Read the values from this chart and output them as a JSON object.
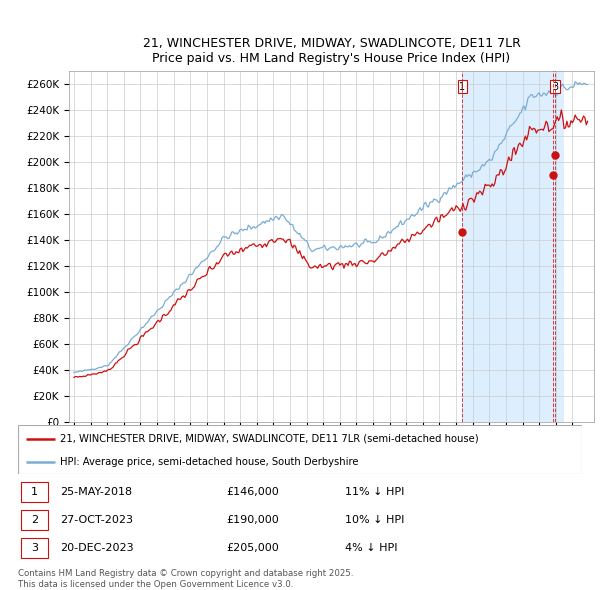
{
  "title_line1": "21, WINCHESTER DRIVE, MIDWAY, SWADLINCOTE, DE11 7LR",
  "title_line2": "Price paid vs. HM Land Registry's House Price Index (HPI)",
  "ylim": [
    0,
    270000
  ],
  "yticks": [
    0,
    20000,
    40000,
    60000,
    80000,
    100000,
    120000,
    140000,
    160000,
    180000,
    200000,
    220000,
    240000,
    260000
  ],
  "ytick_labels": [
    "£0",
    "£20K",
    "£40K",
    "£60K",
    "£80K",
    "£100K",
    "£120K",
    "£140K",
    "£160K",
    "£180K",
    "£200K",
    "£220K",
    "£240K",
    "£260K"
  ],
  "hpi_color": "#7aadd4",
  "price_color": "#cc1111",
  "sale1_x": 2018.38,
  "sale1_y": 146000,
  "sale2_x": 2023.82,
  "sale2_y": 190000,
  "sale3_x": 2023.97,
  "sale3_y": 205000,
  "shade_color": "#ddeeff",
  "sale1": {
    "label": "1",
    "date": "25-MAY-2018",
    "price": 146000,
    "pct": "11% ↓ HPI"
  },
  "sale2": {
    "label": "2",
    "date": "27-OCT-2023",
    "price": 190000,
    "pct": "10% ↓ HPI"
  },
  "sale3": {
    "label": "3",
    "date": "20-DEC-2023",
    "price": 205000,
    "pct": "4% ↓ HPI"
  },
  "legend_line1": "21, WINCHESTER DRIVE, MIDWAY, SWADLINCOTE, DE11 7LR (semi-detached house)",
  "legend_line2": "HPI: Average price, semi-detached house, South Derbyshire",
  "footer": "Contains HM Land Registry data © Crown copyright and database right 2025.\nThis data is licensed under the Open Government Licence v3.0.",
  "bg_color": "#ffffff",
  "grid_color": "#cccccc",
  "xlim_start": 1994.7,
  "xlim_end": 2026.3
}
